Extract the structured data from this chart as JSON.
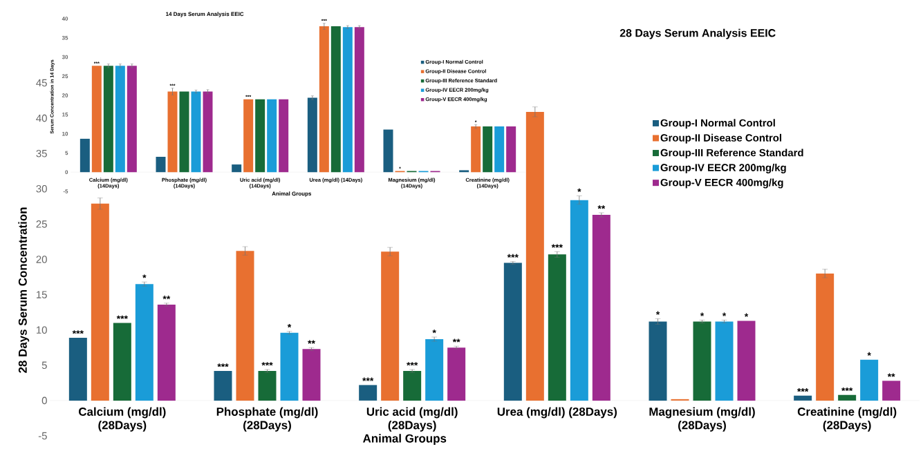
{
  "chart_data": [
    {
      "type": "bar",
      "title": "14 Days Serum Analysis EEIC",
      "xlabel": "Animal Groups",
      "ylabel": "Serum Concentration in 14 Days",
      "categories": [
        "Calcium (mg/dl) (14Days)",
        "Phosphate (mg/dl) (14Days)",
        "Uric acid (mg/dl) (14Days)",
        "Urea (mg/dl) (14Days)",
        "Magnesium (mg/dl) (14Days)",
        "Creatinine (mg/dl) (14Days)"
      ],
      "ylim": [
        -5,
        40
      ],
      "yticks": [
        -5,
        0,
        5,
        10,
        15,
        20,
        25,
        30,
        35,
        40
      ],
      "legend": "top right",
      "series": [
        {
          "name": "Group-I Normal Control",
          "color": "#1a5e80",
          "values": [
            8.7,
            4.0,
            2.0,
            19.4,
            11.1,
            0.5
          ],
          "errors": [
            null,
            null,
            null,
            0.5,
            null,
            null
          ]
        },
        {
          "name": "Group-II Disease Control",
          "color": "#e87030",
          "values": [
            27.7,
            21.0,
            19.0,
            38.0,
            0.3,
            11.9
          ],
          "errors": [
            null,
            0.9,
            null,
            0.8,
            null,
            0.5
          ],
          "value_labels": [
            "***",
            "***",
            "***",
            "***",
            "*",
            "*"
          ]
        },
        {
          "name": "Group-III Reference Standard",
          "color": "#176b38",
          "values": [
            27.7,
            21.0,
            19.0,
            38.0,
            0.3,
            11.9
          ],
          "errors": [
            0.5,
            null,
            null,
            null,
            null,
            null
          ]
        },
        {
          "name": "Group-IV EECR 200mg/kg",
          "color": "#1a9cd8",
          "values": [
            27.7,
            21.0,
            19.0,
            37.8,
            0.3,
            11.9
          ],
          "errors": [
            0.5,
            0.4,
            null,
            0.4,
            null,
            null
          ]
        },
        {
          "name": "Group-V EECR 400mg/kg",
          "color": "#9e2a8e",
          "values": [
            27.7,
            21.0,
            19.0,
            37.8,
            0.3,
            11.9
          ],
          "errors": [
            0.5,
            0.5,
            null,
            0.4,
            null,
            null
          ]
        }
      ]
    },
    {
      "type": "bar",
      "title": "28 Days Serum Analysis EEIC",
      "xlabel": "Animal Groups",
      "ylabel": "28 Days Serum Concentration",
      "categories": [
        "Calcium (mg/dl) (28Days)",
        "Phosphate (mg/dl) (28Days)",
        "Uric acid (mg/dl) (28Days)",
        "Urea (mg/dl) (28Days)",
        "Magnesium (mg/dl) (28Days)",
        "Creatinine (mg/dl) (28Days)"
      ],
      "ylim": [
        -5,
        45
      ],
      "yticks": [
        -5,
        0,
        5,
        10,
        15,
        20,
        25,
        30,
        35,
        40,
        45
      ],
      "legend": "right",
      "series": [
        {
          "name": "Group-I Normal Control",
          "color": "#1a5e80",
          "values": [
            8.9,
            4.2,
            2.2,
            19.5,
            11.2,
            0.7
          ],
          "errors": [
            null,
            null,
            null,
            0.2,
            0.4,
            null
          ],
          "value_labels": [
            "***",
            "***",
            "***",
            "***",
            "*",
            "***"
          ]
        },
        {
          "name": "Group-II Disease Control",
          "color": "#e87030",
          "values": [
            27.9,
            21.2,
            21.1,
            40.9,
            0.2,
            18.0
          ],
          "errors": [
            0.8,
            0.6,
            0.6,
            0.7,
            null,
            0.6
          ]
        },
        {
          "name": "Group-III Reference Standard",
          "color": "#176b38",
          "values": [
            11.0,
            4.2,
            4.2,
            20.7,
            11.2,
            0.8
          ],
          "errors": [
            null,
            0.2,
            0.2,
            0.4,
            0.2,
            null
          ],
          "value_labels": [
            "***",
            "***",
            "***",
            "***",
            "*",
            "***"
          ]
        },
        {
          "name": "Group-IV EECR 200mg/kg",
          "color": "#1a9cd8",
          "values": [
            16.5,
            9.6,
            8.7,
            28.4,
            11.2,
            5.8
          ],
          "errors": [
            0.3,
            0.2,
            0.3,
            0.6,
            0.2,
            null
          ],
          "value_labels": [
            "*",
            "*",
            "*",
            "*",
            "*",
            "*"
          ]
        },
        {
          "name": "Group-V EECR 400mg/kg",
          "color": "#9e2a8e",
          "values": [
            13.6,
            7.3,
            7.5,
            26.3,
            11.3,
            2.8
          ],
          "errors": [
            0.2,
            0.2,
            0.2,
            0.3,
            null,
            null
          ],
          "value_labels": [
            "**",
            "**",
            "**",
            "**",
            "*",
            "**"
          ]
        }
      ]
    }
  ]
}
